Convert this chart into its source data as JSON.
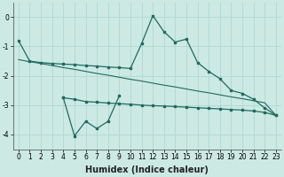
{
  "xlabel": "Humidex (Indice chaleur)",
  "background_color": "#cce9e4",
  "grid_color": "#b0d8d0",
  "line_color": "#1f6b5e",
  "x_values": [
    0,
    1,
    2,
    3,
    4,
    5,
    6,
    7,
    8,
    9,
    10,
    11,
    12,
    13,
    14,
    15,
    16,
    17,
    18,
    19,
    20,
    21,
    22,
    23
  ],
  "line1_y": [
    -0.8,
    -1.5,
    -1.55,
    -1.58,
    -1.6,
    -1.62,
    -1.65,
    -1.67,
    -1.7,
    -1.72,
    -1.75,
    -0.9,
    0.05,
    -0.5,
    -0.85,
    -0.75,
    -1.55,
    -1.85,
    -2.1,
    -2.5,
    -2.6,
    -2.8,
    -3.1,
    -3.35
  ],
  "reg_y": [
    -1.45,
    -1.52,
    -1.58,
    -1.65,
    -1.72,
    -1.78,
    -1.85,
    -1.92,
    -1.98,
    -2.05,
    -2.12,
    -2.18,
    -2.25,
    -2.32,
    -2.38,
    -2.45,
    -2.52,
    -2.58,
    -2.65,
    -2.72,
    -2.78,
    -2.85,
    -2.92,
    -3.35
  ],
  "line3_y": [
    null,
    null,
    null,
    null,
    -2.75,
    -2.8,
    -2.88,
    -2.9,
    -2.93,
    -2.95,
    -2.97,
    -3.0,
    -3.02,
    -3.03,
    -3.05,
    -3.07,
    -3.09,
    -3.11,
    -3.13,
    -3.15,
    -3.17,
    -3.2,
    -3.25,
    -3.35
  ],
  "line2_x": [
    4,
    5,
    6,
    7,
    8,
    9
  ],
  "line2_y": [
    -2.75,
    -4.05,
    -3.55,
    -3.8,
    -3.55,
    -2.68
  ],
  "ylim": [
    -4.5,
    0.5
  ],
  "xlim": [
    -0.5,
    23.5
  ],
  "yticks": [
    0,
    -1,
    -2,
    -3,
    -4
  ],
  "tick_fontsize": 5.5,
  "xlabel_fontsize": 7.0
}
